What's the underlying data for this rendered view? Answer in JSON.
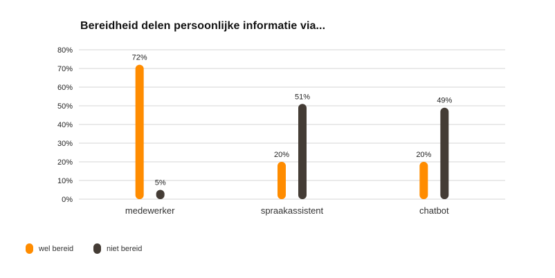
{
  "chart_data": {
    "type": "bar",
    "title": "Bereidheid delen persoonlijke informatie via...",
    "xlabel": "",
    "ylabel": "",
    "categories": [
      "medewerker",
      "spraakassistent",
      "chatbot"
    ],
    "series": [
      {
        "name": "wel bereid",
        "color": "#FF8C00",
        "values": [
          72,
          20,
          20
        ],
        "labels": [
          "72%",
          "20%",
          "20%"
        ]
      },
      {
        "name": "niet bereid",
        "color": "#443C35",
        "values": [
          5,
          51,
          49
        ],
        "labels": [
          "5%",
          "51%",
          "49%"
        ]
      }
    ],
    "ylim": [
      0,
      80
    ],
    "yticks": [
      0,
      10,
      20,
      30,
      40,
      50,
      60,
      70,
      80
    ],
    "ytick_labels": [
      "0%",
      "10%",
      "20%",
      "30%",
      "40%",
      "50%",
      "60%",
      "70%",
      "80%"
    ],
    "grid": true,
    "legend_position": "bottom-left"
  }
}
